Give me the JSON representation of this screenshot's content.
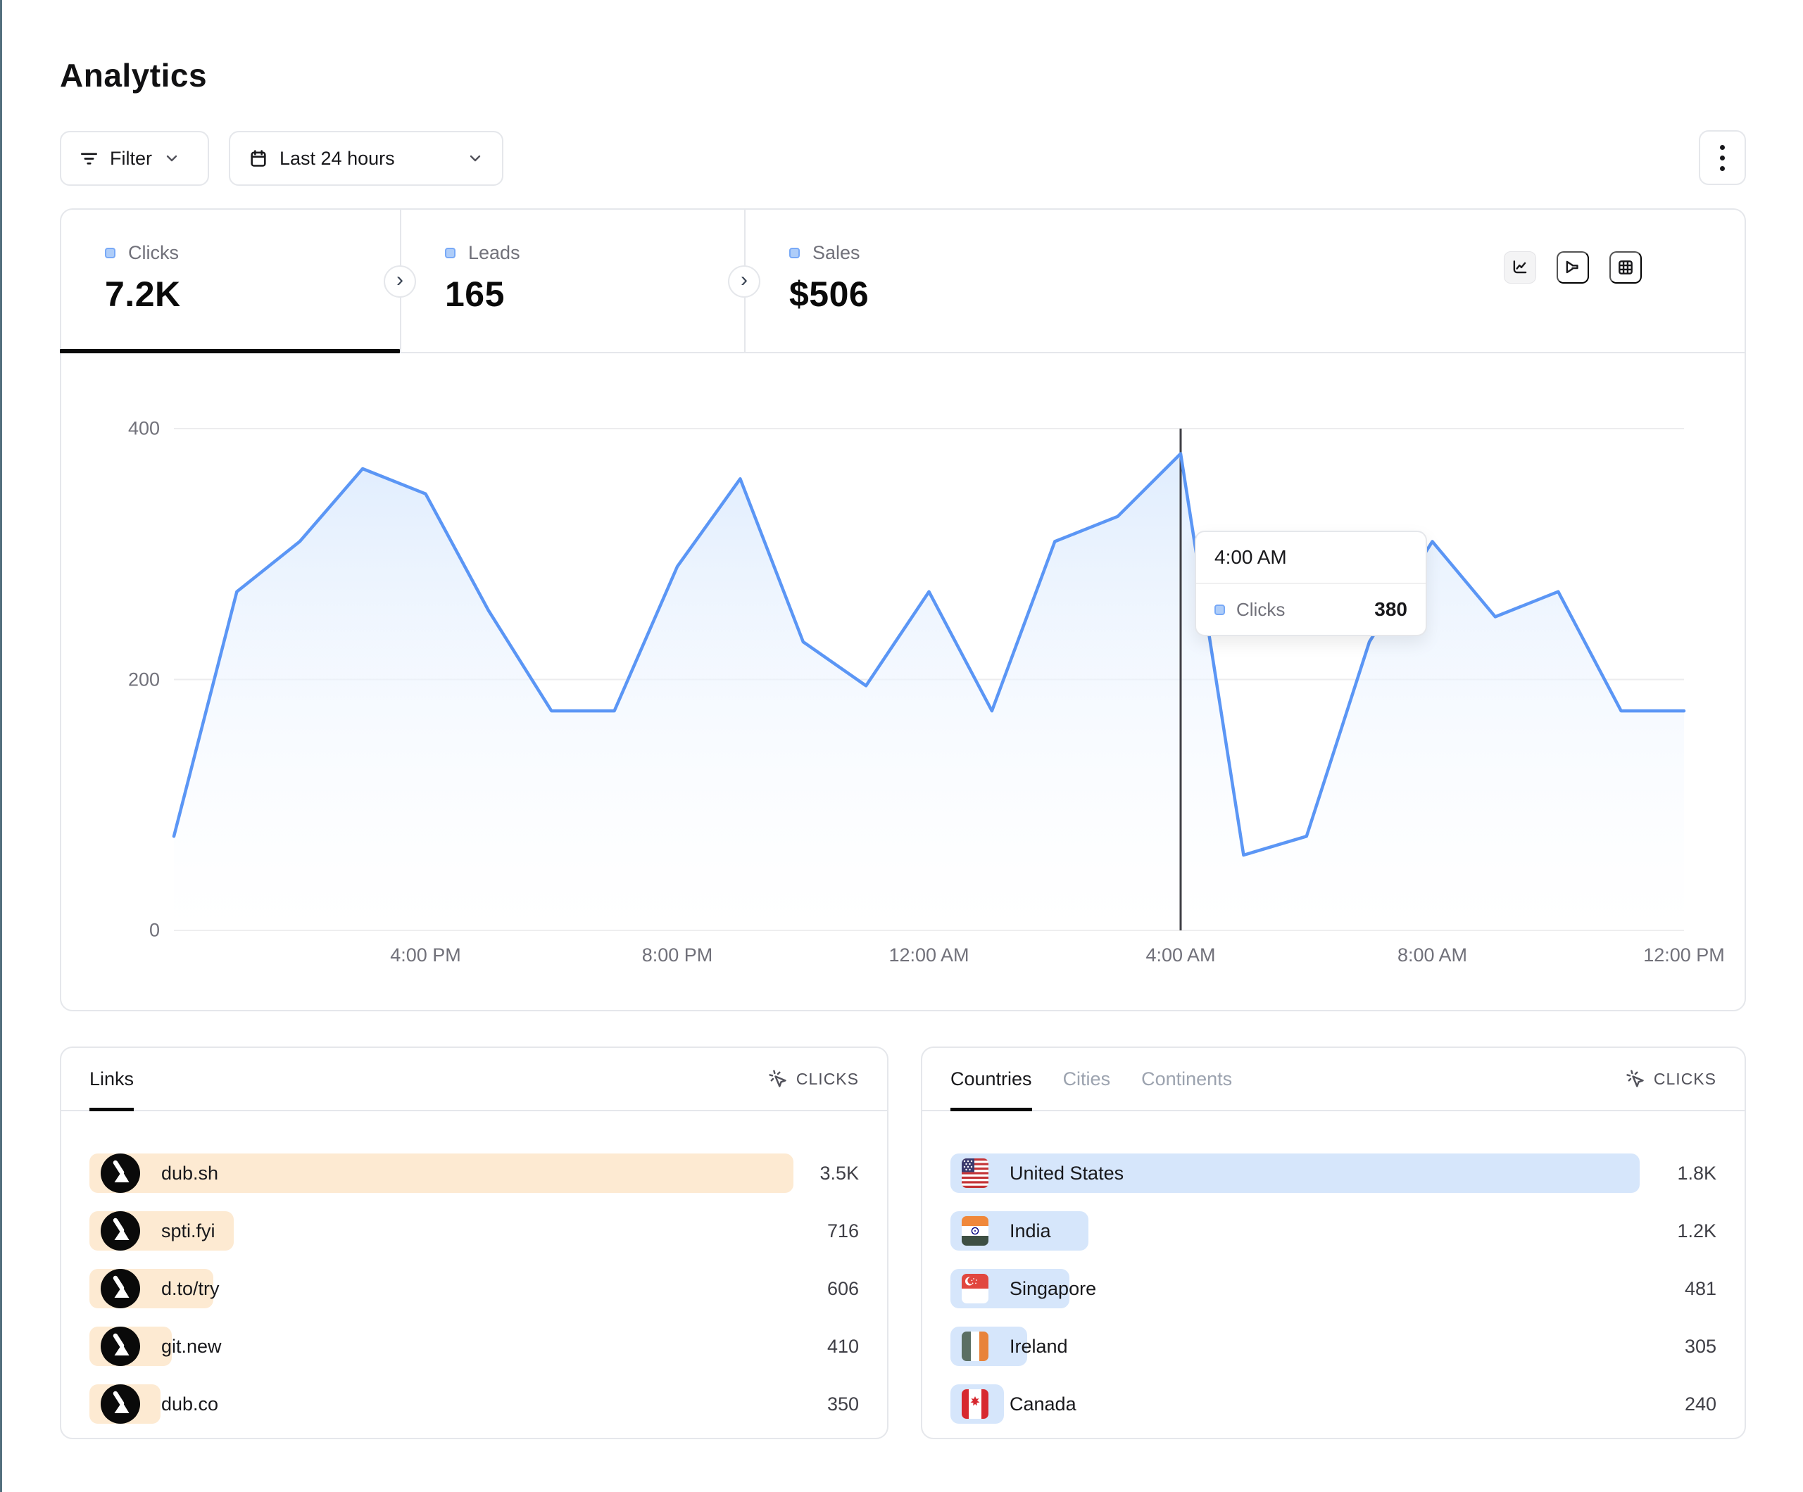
{
  "page": {
    "title": "Analytics"
  },
  "toolbar": {
    "filter_label": "Filter",
    "date_range_label": "Last 24 hours"
  },
  "metrics": {
    "tabs": [
      {
        "label": "Clicks",
        "value": "7.2K",
        "active": true
      },
      {
        "label": "Leads",
        "value": "165",
        "active": false
      },
      {
        "label": "Sales",
        "value": "$506",
        "active": false
      }
    ]
  },
  "view_switcher": [
    "line-chart",
    "funnel-chart",
    "table-grid"
  ],
  "chart_data": {
    "type": "area",
    "series_name": "Clicks",
    "x": [
      "12:00 PM",
      "1:00 PM",
      "2:00 PM",
      "3:00 PM",
      "4:00 PM",
      "5:00 PM",
      "6:00 PM",
      "7:00 PM",
      "8:00 PM",
      "9:00 PM",
      "10:00 PM",
      "11:00 PM",
      "12:00 AM",
      "1:00 AM",
      "2:00 AM",
      "3:00 AM",
      "4:00 AM",
      "5:00 AM",
      "6:00 AM",
      "7:00 AM",
      "8:00 AM",
      "9:00 AM",
      "10:00 AM",
      "11:00 AM",
      "12:00 PM"
    ],
    "values": [
      75,
      270,
      310,
      368,
      348,
      255,
      175,
      175,
      290,
      360,
      230,
      195,
      270,
      175,
      310,
      330,
      380,
      60,
      75,
      230,
      310,
      250,
      270,
      175,
      175
    ],
    "x_tick_labels": [
      "4:00 PM",
      "8:00 PM",
      "12:00 AM",
      "4:00 AM",
      "8:00 AM",
      "12:00 PM"
    ],
    "x_tick_indices": [
      4,
      8,
      12,
      16,
      20,
      24
    ],
    "yticks": [
      0,
      200,
      400
    ],
    "ylim": [
      0,
      400
    ],
    "grid": "horizontal",
    "crosshair_index": 16,
    "line_color": "#5b96f5",
    "area_color": "#dbeafe"
  },
  "tooltip": {
    "time": "4:00 AM",
    "series": "Clicks",
    "value": "380"
  },
  "links_panel": {
    "tab": "Links",
    "metric_label": "CLICKS",
    "rows": [
      {
        "label": "dub.sh",
        "value": "3.5K",
        "bar_pct": 91.5,
        "icon": "dub-logo"
      },
      {
        "label": "spti.fyi",
        "value": "716",
        "bar_pct": 18.8,
        "icon": "dub-logo"
      },
      {
        "label": "d.to/try",
        "value": "606",
        "bar_pct": 16.1,
        "icon": "dub-logo"
      },
      {
        "label": "git.new",
        "value": "410",
        "bar_pct": 10.7,
        "icon": "dub-logo"
      },
      {
        "label": "dub.co",
        "value": "350",
        "bar_pct": 9.2,
        "icon": "dub-logo"
      }
    ]
  },
  "geo_panel": {
    "tabs": [
      "Countries",
      "Cities",
      "Continents"
    ],
    "active_tab": "Countries",
    "metric_label": "CLICKS",
    "rows": [
      {
        "label": "United States",
        "value": "1.8K",
        "bar_pct": 90,
        "flag": "us"
      },
      {
        "label": "India",
        "value": "1.2K",
        "bar_pct": 18,
        "flag": "in"
      },
      {
        "label": "Singapore",
        "value": "481",
        "bar_pct": 15.5,
        "flag": "sg"
      },
      {
        "label": "Ireland",
        "value": "305",
        "bar_pct": 10,
        "flag": "ie"
      },
      {
        "label": "Canada",
        "value": "240",
        "bar_pct": 7,
        "flag": "ca"
      }
    ]
  },
  "colors": {
    "accent_blue": "#5b96f5",
    "area_fill": "#dbeafe",
    "links_bar": "#fdead2",
    "geo_bar": "#d6e6fb",
    "border": "#e5e7eb",
    "crosshair": "#3f3f46"
  }
}
